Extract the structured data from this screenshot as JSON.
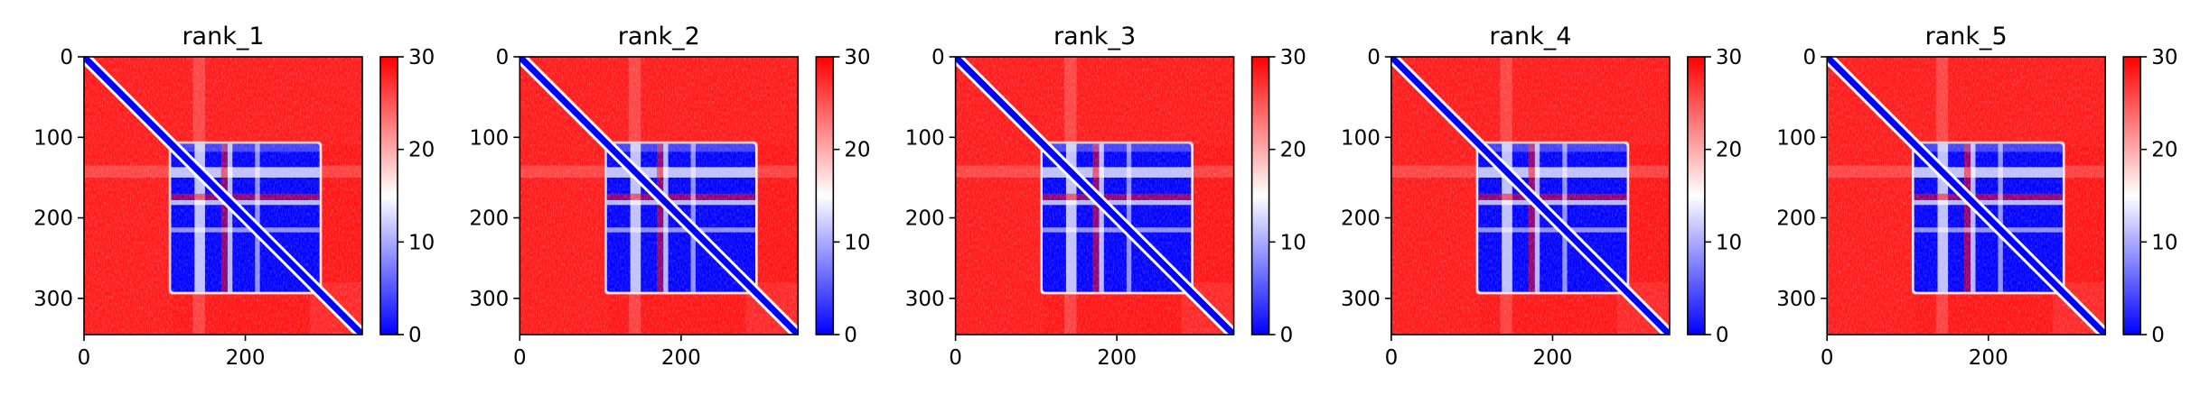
{
  "colors": {
    "low": "#0000ff",
    "mid": "#ffffff",
    "high": "#ff0000",
    "axis": "#000000"
  },
  "chart_data": [
    {
      "type": "heatmap",
      "title": "rank_1",
      "xlim": [
        0,
        345
      ],
      "ylim": [
        345,
        0
      ],
      "xticks": [
        {
          "value": 0,
          "label": "0"
        },
        {
          "value": 200,
          "label": "200"
        }
      ],
      "yticks": [
        {
          "value": 0,
          "label": "0"
        },
        {
          "value": 100,
          "label": "100"
        },
        {
          "value": 200,
          "label": "200"
        },
        {
          "value": 300,
          "label": "300"
        }
      ],
      "colorbar": {
        "min": 0,
        "max": 30,
        "ticks": [
          {
            "value": 0,
            "label": "0"
          },
          {
            "value": 10,
            "label": "10"
          },
          {
            "value": 20,
            "label": "20"
          },
          {
            "value": 30,
            "label": "30"
          }
        ],
        "colormap": "bwr"
      }
    },
    {
      "type": "heatmap",
      "title": "rank_2",
      "xlim": [
        0,
        345
      ],
      "ylim": [
        345,
        0
      ],
      "xticks": [
        {
          "value": 0,
          "label": "0"
        },
        {
          "value": 200,
          "label": "200"
        }
      ],
      "yticks": [
        {
          "value": 0,
          "label": "0"
        },
        {
          "value": 100,
          "label": "100"
        },
        {
          "value": 200,
          "label": "200"
        },
        {
          "value": 300,
          "label": "300"
        }
      ],
      "colorbar": {
        "min": 0,
        "max": 30,
        "ticks": [
          {
            "value": 0,
            "label": "0"
          },
          {
            "value": 10,
            "label": "10"
          },
          {
            "value": 20,
            "label": "20"
          },
          {
            "value": 30,
            "label": "30"
          }
        ],
        "colormap": "bwr"
      }
    },
    {
      "type": "heatmap",
      "title": "rank_3",
      "xlim": [
        0,
        345
      ],
      "ylim": [
        345,
        0
      ],
      "xticks": [
        {
          "value": 0,
          "label": "0"
        },
        {
          "value": 200,
          "label": "200"
        }
      ],
      "yticks": [
        {
          "value": 0,
          "label": "0"
        },
        {
          "value": 100,
          "label": "100"
        },
        {
          "value": 200,
          "label": "200"
        },
        {
          "value": 300,
          "label": "300"
        }
      ],
      "colorbar": {
        "min": 0,
        "max": 30,
        "ticks": [
          {
            "value": 0,
            "label": "0"
          },
          {
            "value": 10,
            "label": "10"
          },
          {
            "value": 20,
            "label": "20"
          },
          {
            "value": 30,
            "label": "30"
          }
        ],
        "colormap": "bwr"
      }
    },
    {
      "type": "heatmap",
      "title": "rank_4",
      "xlim": [
        0,
        345
      ],
      "ylim": [
        345,
        0
      ],
      "xticks": [
        {
          "value": 0,
          "label": "0"
        },
        {
          "value": 200,
          "label": "200"
        }
      ],
      "yticks": [
        {
          "value": 0,
          "label": "0"
        },
        {
          "value": 100,
          "label": "100"
        },
        {
          "value": 200,
          "label": "200"
        },
        {
          "value": 300,
          "label": "300"
        }
      ],
      "colorbar": {
        "min": 0,
        "max": 30,
        "ticks": [
          {
            "value": 0,
            "label": "0"
          },
          {
            "value": 10,
            "label": "10"
          },
          {
            "value": 20,
            "label": "20"
          },
          {
            "value": 30,
            "label": "30"
          }
        ],
        "colormap": "bwr"
      }
    },
    {
      "type": "heatmap",
      "title": "rank_5",
      "xlim": [
        0,
        345
      ],
      "ylim": [
        345,
        0
      ],
      "xticks": [
        {
          "value": 0,
          "label": "0"
        },
        {
          "value": 200,
          "label": "200"
        }
      ],
      "yticks": [
        {
          "value": 0,
          "label": "0"
        },
        {
          "value": 100,
          "label": "100"
        },
        {
          "value": 200,
          "label": "200"
        },
        {
          "value": 300,
          "label": "300"
        }
      ],
      "colorbar": {
        "min": 0,
        "max": 30,
        "ticks": [
          {
            "value": 0,
            "label": "0"
          },
          {
            "value": 10,
            "label": "10"
          },
          {
            "value": 20,
            "label": "20"
          },
          {
            "value": 30,
            "label": "30"
          }
        ],
        "colormap": "bwr"
      }
    }
  ]
}
